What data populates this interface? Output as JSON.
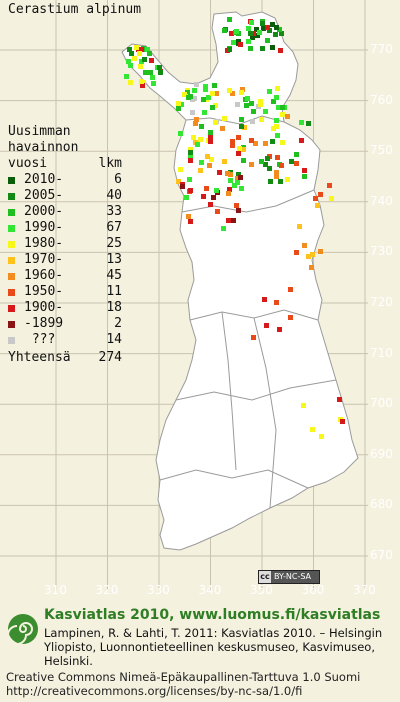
{
  "title": "Cerastium alpinum",
  "legend": {
    "heading": [
      "Uusimman",
      "havainnon",
      "vuosi"
    ],
    "count_heading": "lkm",
    "rows": [
      {
        "label": "2010-",
        "count": "6",
        "color": "#0a5e0a"
      },
      {
        "label": "2005-",
        "count": "40",
        "color": "#138a13"
      },
      {
        "label": "2000-",
        "count": "33",
        "color": "#1fbf1f"
      },
      {
        "label": "1990-",
        "count": "67",
        "color": "#33e633"
      },
      {
        "label": "1980-",
        "count": "25",
        "color": "#f7f71a"
      },
      {
        "label": "1970-",
        "count": "13",
        "color": "#ffc21a"
      },
      {
        "label": "1960-",
        "count": "45",
        "color": "#f28c1f"
      },
      {
        "label": "1950-",
        "count": "11",
        "color": "#e84a1a"
      },
      {
        "label": "1900-",
        "count": "18",
        "color": "#d61a1a"
      },
      {
        "label": "-1899",
        "count": "2",
        "color": "#8a1414"
      },
      {
        "label": " ???",
        "count": "14",
        "color": "#c8c8c8"
      }
    ],
    "total_label": "Yhteensä",
    "total_count": "274"
  },
  "y_ticks": [
    "770",
    "760",
    "750",
    "740",
    "730",
    "720",
    "710",
    "700",
    "690",
    "680",
    "670"
  ],
  "x_ticks": [
    "310",
    "320",
    "330",
    "340",
    "350",
    "360",
    "370"
  ],
  "cc_badge": {
    "logo": "cc",
    "text": "BY-NC-SA"
  },
  "brand": "Kasviatlas 2010, www.luomus.fi/kasviatlas",
  "citation": "Lampinen, R. & Lahti, T. 2011: Kasviatlas 2010. – Helsingin Yliopisto, Luonnontieteellinen keskusmuseo, Kasvimuseo, Helsinki.",
  "license": [
    "Creative Commons Nimeä-Epäkaupallinen-Tarttuva 1.0 Suomi",
    "http://creativecommons.org/licenses/by-nc-sa/1.0/fi"
  ],
  "colors": {
    "background": "#f4f1df",
    "land": "#ffffff",
    "grid": "#c9c4b0",
    "border": "#8a8a8a",
    "brand": "#2f7d24"
  }
}
